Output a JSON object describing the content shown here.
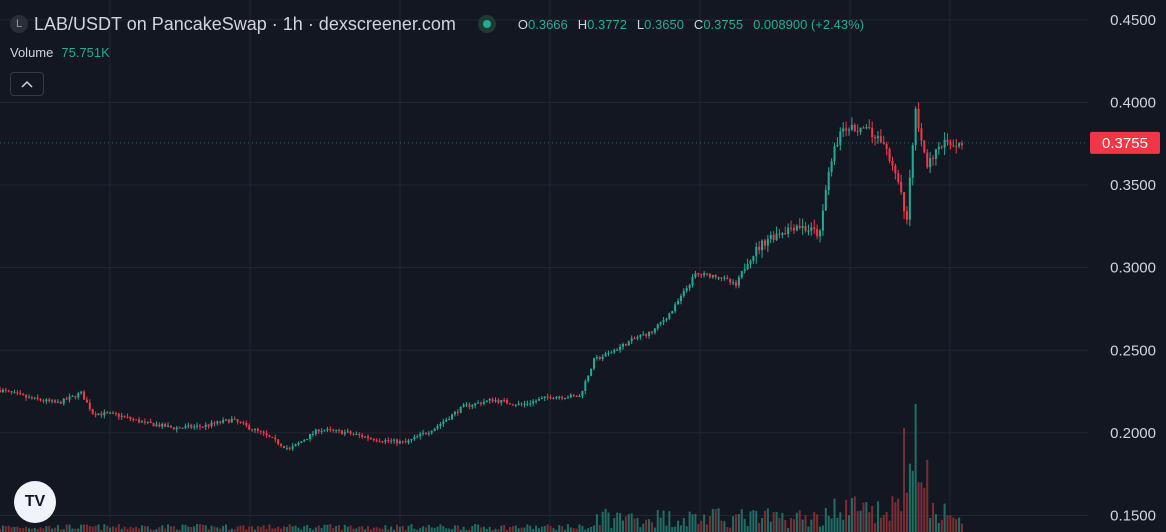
{
  "header": {
    "symbol_icon": "L",
    "title": "LAB/USDT on PancakeSwap · 1h · dexscreener.com",
    "ohlc": {
      "o_label": "O",
      "o_value": "0.3666",
      "h_label": "H",
      "h_value": "0.3772",
      "l_label": "L",
      "l_value": "0.3650",
      "c_label": "C",
      "c_value": "0.3755",
      "change": "0.008900 (+2.43%)"
    },
    "volume_label": "Volume",
    "volume_value": "75.751K",
    "collapse_icon": "chevron-up-icon"
  },
  "price_axis": {
    "ticks": [
      "0.4500",
      "0.4000",
      "0.3500",
      "0.3000",
      "0.2500",
      "0.2000",
      "0.1500"
    ],
    "last_price_label": "0.3755"
  },
  "logo": {
    "text": "TV",
    "icon": "tradingview-logo-icon"
  },
  "colors": {
    "background": "#131722",
    "grid": "#232632",
    "up": "#22ab94",
    "down": "#f23645",
    "up_volume": "#1f6e63",
    "down_volume": "#7c2d33",
    "text": "#d1d4dc"
  },
  "chart_data": {
    "type": "candlestick",
    "ylim": [
      0.14,
      0.462
    ],
    "y_ticks": [
      0.45,
      0.4,
      0.35,
      0.3,
      0.25,
      0.2,
      0.15
    ],
    "last_price": 0.3755,
    "keyframes": [
      [
        0,
        0.226
      ],
      [
        10,
        0.221
      ],
      [
        20,
        0.218
      ],
      [
        28,
        0.224
      ],
      [
        32,
        0.212
      ],
      [
        40,
        0.211
      ],
      [
        50,
        0.206
      ],
      [
        60,
        0.203
      ],
      [
        70,
        0.204
      ],
      [
        80,
        0.208
      ],
      [
        90,
        0.2
      ],
      [
        100,
        0.19
      ],
      [
        110,
        0.202
      ],
      [
        120,
        0.2
      ],
      [
        130,
        0.196
      ],
      [
        140,
        0.194
      ],
      [
        150,
        0.203
      ],
      [
        160,
        0.216
      ],
      [
        170,
        0.22
      ],
      [
        180,
        0.217
      ],
      [
        190,
        0.222
      ],
      [
        200,
        0.222
      ],
      [
        205,
        0.244
      ],
      [
        210,
        0.248
      ],
      [
        215,
        0.253
      ],
      [
        220,
        0.258
      ],
      [
        225,
        0.261
      ],
      [
        232,
        0.274
      ],
      [
        240,
        0.296
      ],
      [
        248,
        0.295
      ],
      [
        254,
        0.289
      ],
      [
        258,
        0.305
      ],
      [
        265,
        0.318
      ],
      [
        275,
        0.326
      ],
      [
        283,
        0.32
      ],
      [
        286,
        0.36
      ],
      [
        290,
        0.382
      ],
      [
        296,
        0.385
      ],
      [
        302,
        0.38
      ],
      [
        306,
        0.372
      ],
      [
        310,
        0.35
      ],
      [
        313,
        0.33
      ],
      [
        316,
        0.395
      ],
      [
        320,
        0.36
      ],
      [
        324,
        0.375
      ],
      [
        332,
        0.3755
      ]
    ]
  }
}
